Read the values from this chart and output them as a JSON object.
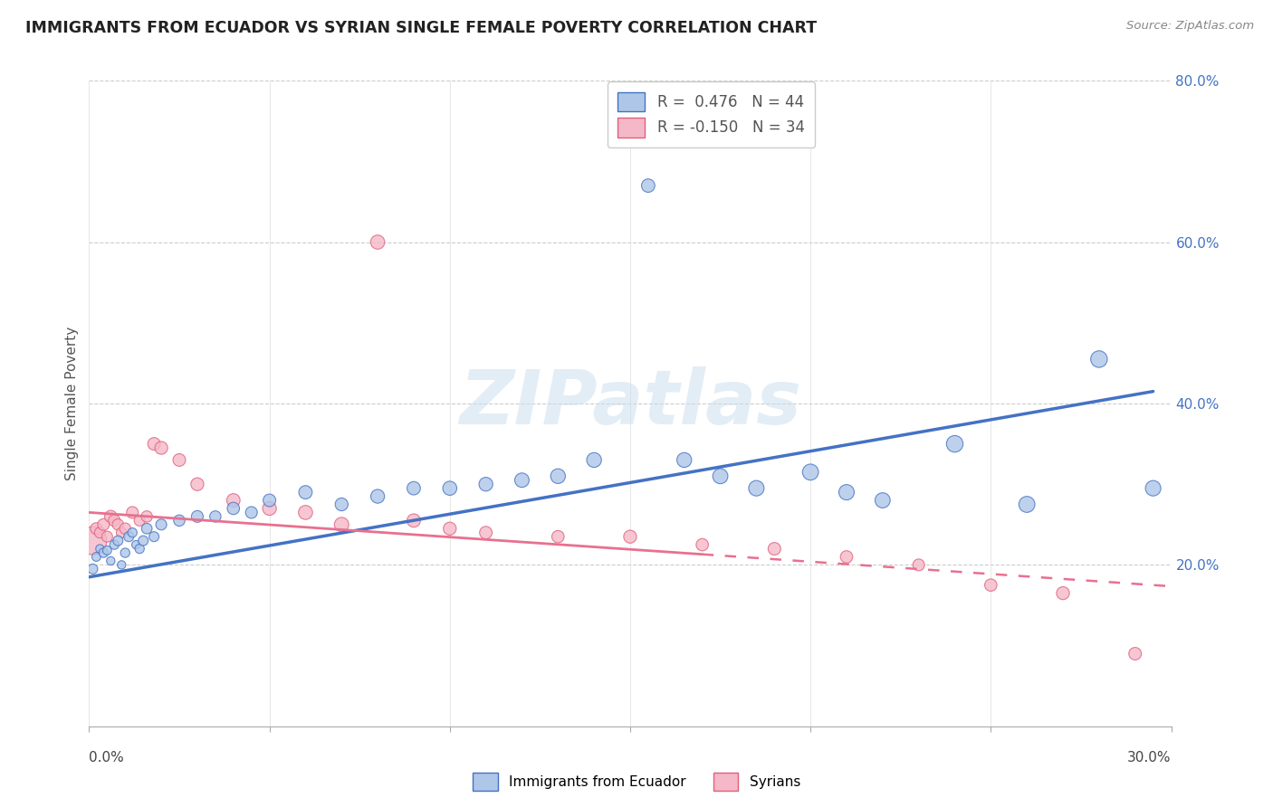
{
  "title": "IMMIGRANTS FROM ECUADOR VS SYRIAN SINGLE FEMALE POVERTY CORRELATION CHART",
  "source": "Source: ZipAtlas.com",
  "legend_label1": "Immigrants from Ecuador",
  "legend_label2": "Syrians",
  "ylabel": "Single Female Poverty",
  "R1": 0.476,
  "N1": 44,
  "R2": -0.15,
  "N2": 34,
  "watermark": "ZIPatlas",
  "blue_fill": "#aec6e8",
  "blue_edge": "#4472c4",
  "pink_fill": "#f4b8c8",
  "pink_edge": "#e0607a",
  "line_blue": "#4472c4",
  "line_pink": "#e87090",
  "ecuador_x": [
    0.001,
    0.002,
    0.003,
    0.004,
    0.005,
    0.006,
    0.007,
    0.008,
    0.009,
    0.01,
    0.011,
    0.012,
    0.013,
    0.014,
    0.015,
    0.016,
    0.018,
    0.02,
    0.025,
    0.03,
    0.035,
    0.04,
    0.045,
    0.05,
    0.06,
    0.07,
    0.08,
    0.09,
    0.1,
    0.11,
    0.12,
    0.13,
    0.14,
    0.155,
    0.165,
    0.175,
    0.185,
    0.2,
    0.21,
    0.22,
    0.24,
    0.26,
    0.28,
    0.295
  ],
  "ecuador_y": [
    0.195,
    0.21,
    0.22,
    0.215,
    0.218,
    0.205,
    0.225,
    0.23,
    0.2,
    0.215,
    0.235,
    0.24,
    0.225,
    0.22,
    0.23,
    0.245,
    0.235,
    0.25,
    0.255,
    0.26,
    0.26,
    0.27,
    0.265,
    0.28,
    0.29,
    0.275,
    0.285,
    0.295,
    0.295,
    0.3,
    0.305,
    0.31,
    0.33,
    0.67,
    0.33,
    0.31,
    0.295,
    0.315,
    0.29,
    0.28,
    0.35,
    0.275,
    0.455,
    0.295
  ],
  "ecuador_sizes": [
    25,
    20,
    18,
    22,
    20,
    18,
    22,
    25,
    18,
    22,
    25,
    22,
    18,
    22,
    25,
    28,
    25,
    30,
    32,
    35,
    32,
    38,
    35,
    40,
    45,
    42,
    48,
    45,
    50,
    48,
    52,
    55,
    55,
    45,
    55,
    58,
    60,
    65,
    60,
    58,
    70,
    65,
    70,
    60
  ],
  "syrian_x": [
    0.001,
    0.002,
    0.003,
    0.004,
    0.005,
    0.006,
    0.007,
    0.008,
    0.009,
    0.01,
    0.012,
    0.014,
    0.016,
    0.018,
    0.02,
    0.025,
    0.03,
    0.04,
    0.05,
    0.06,
    0.07,
    0.08,
    0.09,
    0.1,
    0.11,
    0.13,
    0.15,
    0.17,
    0.19,
    0.21,
    0.23,
    0.25,
    0.27,
    0.29
  ],
  "syrian_y": [
    0.23,
    0.245,
    0.24,
    0.25,
    0.235,
    0.26,
    0.255,
    0.25,
    0.24,
    0.245,
    0.265,
    0.255,
    0.26,
    0.35,
    0.345,
    0.33,
    0.3,
    0.28,
    0.27,
    0.265,
    0.25,
    0.6,
    0.255,
    0.245,
    0.24,
    0.235,
    0.235,
    0.225,
    0.22,
    0.21,
    0.2,
    0.175,
    0.165,
    0.09
  ],
  "syrian_sizes": [
    200,
    35,
    30,
    35,
    30,
    38,
    35,
    32,
    28,
    32,
    35,
    30,
    32,
    40,
    42,
    40,
    42,
    45,
    48,
    50,
    52,
    50,
    45,
    42,
    40,
    38,
    42,
    38,
    40,
    38,
    35,
    38,
    42,
    40
  ],
  "ecu_line_x0": 0.0,
  "ecu_line_y0": 0.185,
  "ecu_line_x1": 0.295,
  "ecu_line_y1": 0.415,
  "syr_line_x0": 0.0,
  "syr_line_y0": 0.265,
  "syr_line_x1": 0.295,
  "syr_line_y1": 0.175,
  "syr_line_dash_x0": 0.295,
  "syr_line_dash_y0": 0.175,
  "syr_line_dash_x1": 0.3,
  "syr_line_dash_y1": 0.07,
  "xlim": [
    0.0,
    0.3
  ],
  "ylim": [
    0.0,
    0.8
  ],
  "yticks": [
    0.2,
    0.4,
    0.6,
    0.8
  ],
  "ytick_labels": [
    "20.0%",
    "40.0%",
    "60.0%",
    "80.0%"
  ]
}
